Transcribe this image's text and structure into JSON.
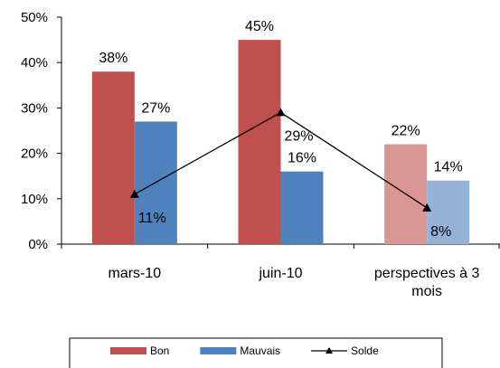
{
  "chart_data": {
    "type": "bar",
    "categories": [
      [
        "mars-10"
      ],
      [
        "juin-10"
      ],
      [
        "perspectives à 3",
        "mois"
      ]
    ],
    "series": [
      {
        "name": "Bon",
        "kind": "bar",
        "values": [
          38,
          45,
          22
        ],
        "labels": [
          "38%",
          "45%",
          "22%"
        ],
        "colors": [
          "#c0504d",
          "#c0504d",
          "#d99694"
        ]
      },
      {
        "name": "Mauvais",
        "kind": "bar",
        "values": [
          27,
          16,
          14
        ],
        "labels": [
          "27%",
          "16%",
          "14%"
        ],
        "colors": [
          "#4f81bd",
          "#4f81bd",
          "#95b3d7"
        ]
      },
      {
        "name": "Solde",
        "kind": "line",
        "values": [
          11,
          29,
          8
        ],
        "labels": [
          "11%",
          "29%",
          "8%"
        ],
        "color": "#000000"
      }
    ],
    "yticks": [
      "0%",
      "10%",
      "20%",
      "30%",
      "40%",
      "50%"
    ],
    "ylim": [
      0,
      50
    ],
    "legend": {
      "placement": "bottom"
    },
    "grid": false
  }
}
